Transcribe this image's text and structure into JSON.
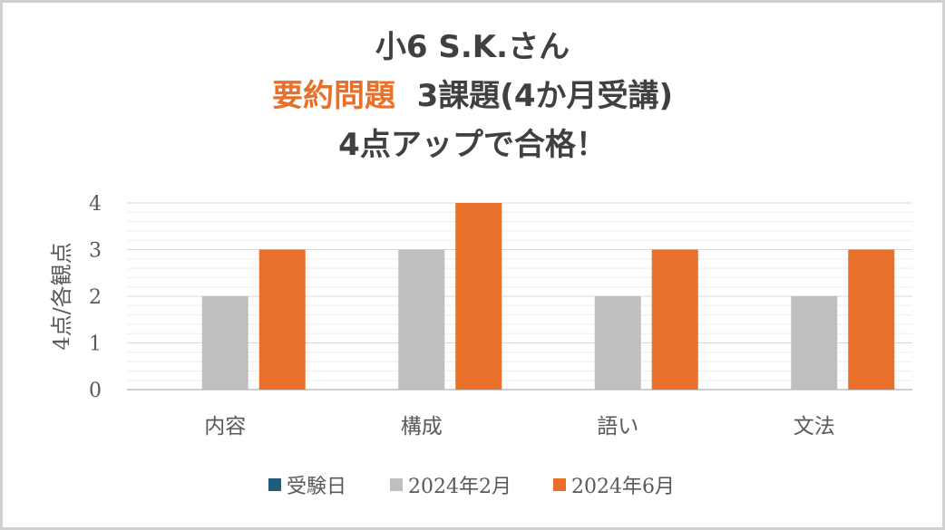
{
  "title": {
    "line1": "小6 S.K.さん",
    "line2_highlight": "要約問題",
    "line2_rest": "3課題(4か月受講)",
    "line3": "4点アップで合格！"
  },
  "chart_data": {
    "type": "bar",
    "title": "小6 S.K.さん 要約問題 3課題(4か月受講) 4点アップで合格！",
    "categories": [
      "内容",
      "構成",
      "語い",
      "文法"
    ],
    "series": [
      {
        "name": "受験日",
        "color": "#1f5c7a",
        "values": [
          0,
          0,
          0,
          0
        ]
      },
      {
        "name": "2024年2月",
        "color": "#bfbfbf",
        "values": [
          2,
          3,
          2,
          2
        ]
      },
      {
        "name": "2024年6月",
        "color": "#e8702a",
        "values": [
          3,
          4,
          3,
          3
        ]
      }
    ],
    "xlabel": "",
    "ylabel": "4点/各観点",
    "ylim": [
      0,
      4
    ],
    "yticks": [
      0,
      1,
      2,
      3,
      4
    ],
    "grid": true,
    "legend": "bottom"
  }
}
